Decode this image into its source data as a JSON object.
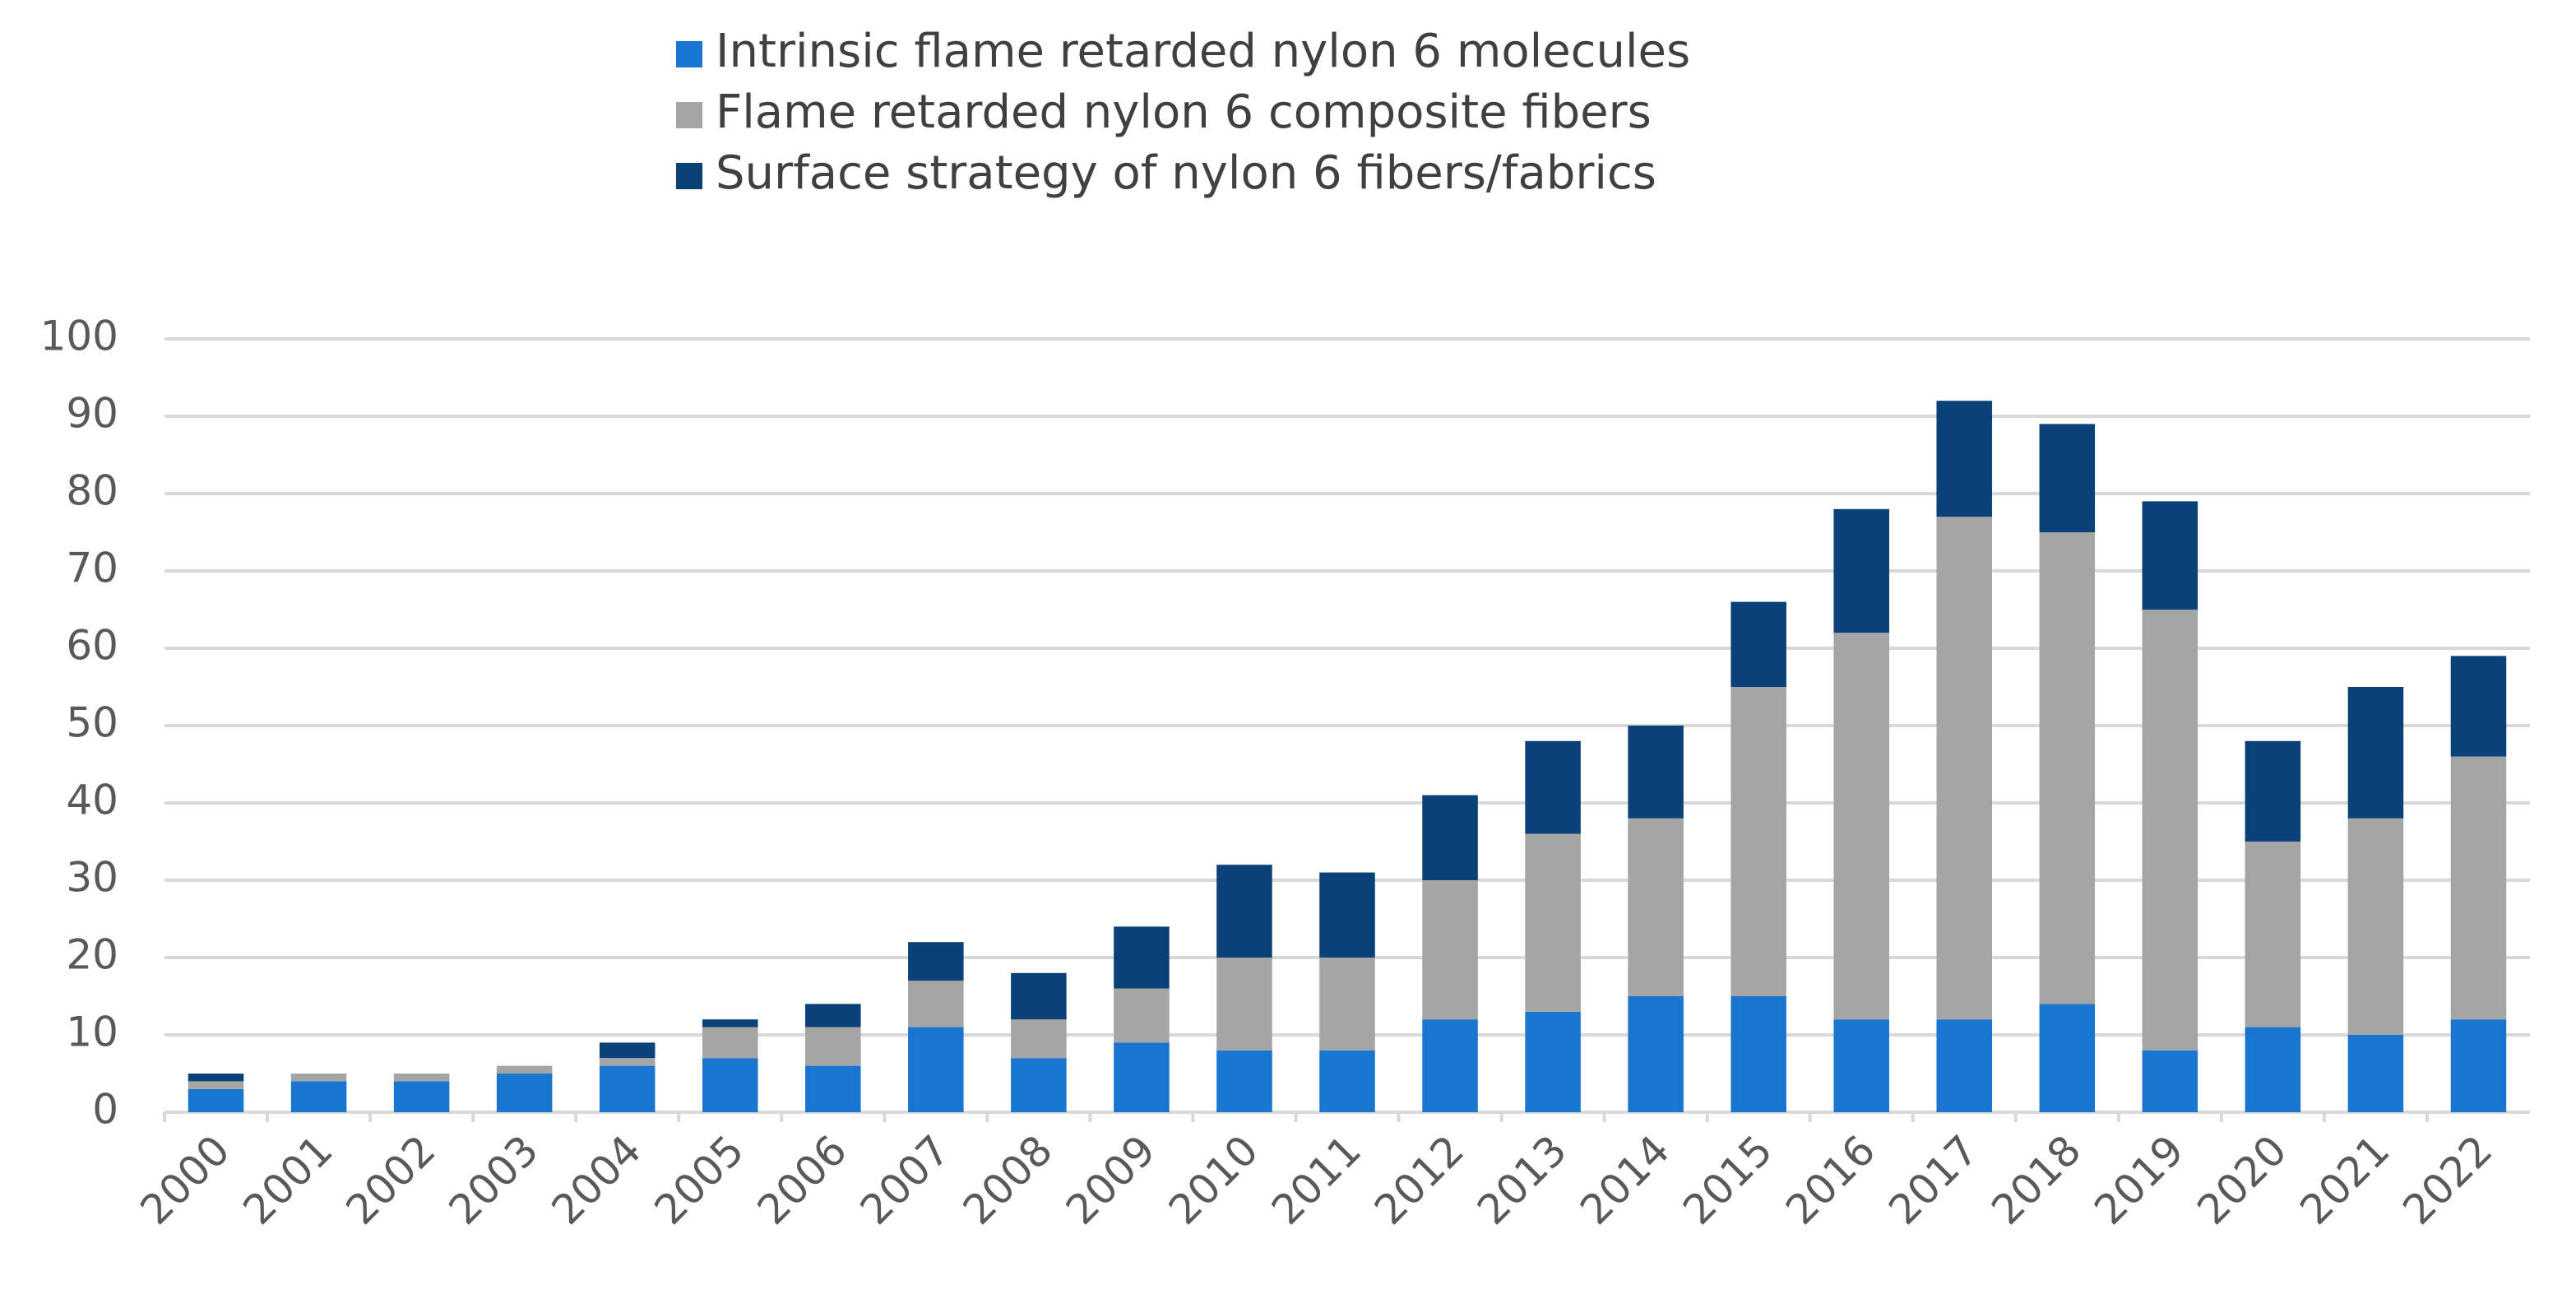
{
  "chart_data": {
    "type": "stacked_bar",
    "categories": [
      "2000",
      "2001",
      "2002",
      "2003",
      "2004",
      "2005",
      "2006",
      "2007",
      "2008",
      "2009",
      "2010",
      "2011",
      "2012",
      "2013",
      "2014",
      "2015",
      "2016",
      "2017",
      "2018",
      "2019",
      "2020",
      "2021",
      "2022"
    ],
    "series": [
      {
        "name": "Intrinsic flame retarded nylon 6 molecules",
        "color": "#1a75cf",
        "values": [
          3,
          4,
          4,
          5,
          6,
          7,
          6,
          11,
          7,
          9,
          8,
          8,
          12,
          13,
          15,
          15,
          12,
          12,
          14,
          8,
          11,
          10,
          12
        ]
      },
      {
        "name": "Flame retarded nylon 6 composite fibers",
        "color": "#a5a5a5",
        "values": [
          1,
          1,
          1,
          1,
          1,
          4,
          5,
          6,
          5,
          7,
          12,
          12,
          18,
          23,
          23,
          40,
          50,
          65,
          61,
          57,
          24,
          28,
          34
        ]
      },
      {
        "name": "Surface strategy of nylon 6 fibers/fabrics",
        "color": "#0b4179",
        "values": [
          1,
          0,
          0,
          0,
          2,
          1,
          3,
          5,
          6,
          8,
          12,
          11,
          11,
          12,
          12,
          11,
          16,
          15,
          14,
          14,
          13,
          17,
          13
        ]
      }
    ],
    "ylim": [
      0,
      100
    ],
    "yticks": [
      0,
      10,
      20,
      30,
      40,
      50,
      60,
      70,
      80,
      90,
      100
    ],
    "grid": true,
    "legend": "top"
  }
}
